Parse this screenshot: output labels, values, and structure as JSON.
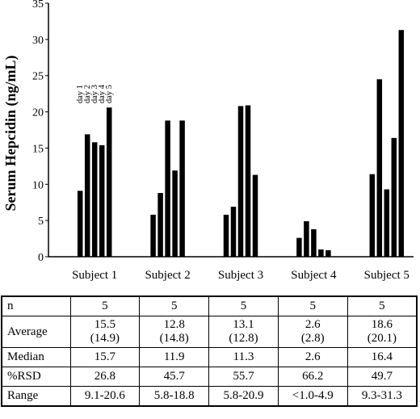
{
  "chart_data": {
    "type": "bar",
    "ylabel": "Serum Hepcidin (ng/mL)",
    "ylim": [
      0,
      35
    ],
    "yticks": [
      0,
      5,
      10,
      15,
      20,
      25,
      30,
      35
    ],
    "yticklabels": [
      "0",
      "5",
      "10",
      "15",
      "20",
      "25",
      "30",
      "35"
    ],
    "categories": [
      "Subject 1",
      "Subject 2",
      "Subject 3",
      "Subject 4",
      "Subject 5"
    ],
    "series": [
      {
        "name": "day 1",
        "values": [
          9.1,
          5.8,
          5.8,
          2.6,
          11.4
        ]
      },
      {
        "name": "day 2",
        "values": [
          16.9,
          8.8,
          6.9,
          4.9,
          24.5
        ]
      },
      {
        "name": "day 3",
        "values": [
          15.8,
          18.8,
          20.8,
          3.8,
          9.3
        ]
      },
      {
        "name": "day 4",
        "values": [
          15.4,
          11.9,
          20.9,
          1.0,
          16.4
        ]
      },
      {
        "name": "day 5",
        "values": [
          20.6,
          18.8,
          11.3,
          0.9,
          31.3
        ]
      }
    ],
    "grid": false,
    "legend": "day labels above Subject 1 bars"
  },
  "table": {
    "rows": [
      {
        "label": "n",
        "cells": [
          "5",
          "5",
          "5",
          "5",
          "5"
        ]
      },
      {
        "label": "Average",
        "cells": [
          "15.5",
          "12.8",
          "13.1",
          "2.6",
          "18.6"
        ],
        "sub": [
          "(14.9)",
          "(14.8)",
          "(12.8)",
          "(2.8)",
          "(20.1)"
        ]
      },
      {
        "label": "Median",
        "cells": [
          "15.7",
          "11.9",
          "11.3",
          "2.6",
          "16.4"
        ]
      },
      {
        "label": "%RSD",
        "cells": [
          "26.8",
          "45.7",
          "55.7",
          "66.2",
          "49.7"
        ]
      },
      {
        "label": "Range",
        "cells": [
          "9.1-20.6",
          "5.8-18.8",
          "5.8-20.9",
          "<1.0-4.9",
          "9.3-31.3"
        ]
      }
    ]
  }
}
